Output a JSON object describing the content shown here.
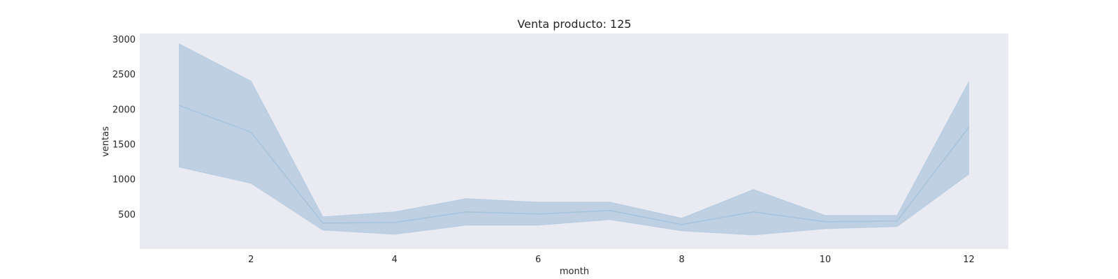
{
  "chart_data": {
    "type": "line",
    "title": "Venta producto: 125",
    "xlabel": "month",
    "ylabel": "ventas",
    "xlim": [
      0.45,
      12.55
    ],
    "ylim": [
      0,
      3080
    ],
    "xticks": [
      2,
      4,
      6,
      8,
      10,
      12
    ],
    "yticks": [
      500,
      1000,
      1500,
      2000,
      2500,
      3000
    ],
    "grid": false,
    "colors": {
      "background": "#eaeaf2",
      "line": "#a7c4de",
      "band": "#bfd0e3"
    },
    "series": [
      {
        "x": [
          1,
          2,
          3,
          4,
          5,
          6,
          7,
          8,
          9,
          10,
          11,
          12
        ],
        "y": [
          2050,
          1670,
          370,
          380,
          530,
          500,
          550,
          350,
          530,
          390,
          400,
          1740
        ],
        "ci_upper": [
          2930,
          2400,
          460,
          530,
          720,
          670,
          670,
          440,
          850,
          480,
          480,
          2390
        ],
        "ci_lower": [
          1170,
          940,
          270,
          210,
          340,
          340,
          420,
          260,
          200,
          290,
          320,
          1070
        ]
      }
    ]
  }
}
